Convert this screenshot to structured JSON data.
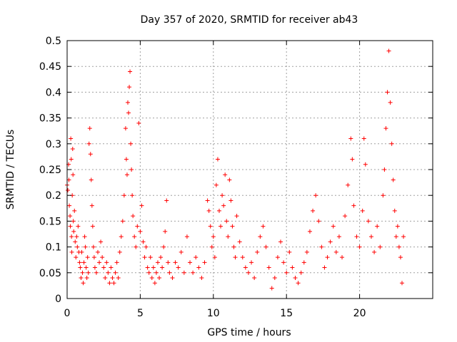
{
  "chart_data": {
    "type": "scatter",
    "title": "Day 357 of 2020, SRMTID for receiver ab43",
    "xlabel": "GPS time / hours",
    "ylabel": "SRMTID / TECUs",
    "xlim": [
      0,
      25
    ],
    "ylim": [
      0,
      0.5
    ],
    "x_ticks": [
      0,
      5,
      10,
      15,
      20
    ],
    "x_tick_labels": [
      "0",
      "5",
      "10",
      "15",
      "20"
    ],
    "y_ticks": [
      0,
      0.05,
      0.1,
      0.15,
      0.2,
      0.25,
      0.3,
      0.35,
      0.4,
      0.45,
      0.5
    ],
    "y_tick_labels": [
      "0",
      "0.05",
      "0.1",
      "0.15",
      "0.2",
      "0.25",
      "0.3",
      "0.35",
      "0.4",
      "0.45",
      "0.5"
    ],
    "grid": true,
    "marker": "+",
    "color": "#ff0000",
    "series": [
      {
        "name": "SRMTID",
        "points": [
          [
            0.0,
            0.22
          ],
          [
            0.05,
            0.21
          ],
          [
            0.1,
            0.26
          ],
          [
            0.12,
            0.23
          ],
          [
            0.15,
            0.18
          ],
          [
            0.2,
            0.16
          ],
          [
            0.22,
            0.14
          ],
          [
            0.25,
            0.31
          ],
          [
            0.28,
            0.27
          ],
          [
            0.3,
            0.12
          ],
          [
            0.32,
            0.09
          ],
          [
            0.35,
            0.2
          ],
          [
            0.38,
            0.29
          ],
          [
            0.4,
            0.24
          ],
          [
            0.42,
            0.15
          ],
          [
            0.45,
            0.13
          ],
          [
            0.5,
            0.17
          ],
          [
            0.55,
            0.11
          ],
          [
            0.6,
            0.08
          ],
          [
            0.65,
            0.12
          ],
          [
            0.7,
            0.1
          ],
          [
            0.75,
            0.14
          ],
          [
            0.8,
            0.09
          ],
          [
            0.85,
            0.07
          ],
          [
            0.9,
            0.06
          ],
          [
            0.95,
            0.04
          ],
          [
            1.0,
            0.09
          ],
          [
            1.05,
            0.05
          ],
          [
            1.1,
            0.03
          ],
          [
            1.15,
            0.07
          ],
          [
            1.2,
            0.12
          ],
          [
            1.25,
            0.1
          ],
          [
            1.3,
            0.06
          ],
          [
            1.35,
            0.04
          ],
          [
            1.4,
            0.08
          ],
          [
            1.45,
            0.05
          ],
          [
            1.5,
            0.3
          ],
          [
            1.55,
            0.33
          ],
          [
            1.6,
            0.28
          ],
          [
            1.65,
            0.23
          ],
          [
            1.7,
            0.18
          ],
          [
            1.75,
            0.14
          ],
          [
            1.8,
            0.1
          ],
          [
            1.85,
            0.08
          ],
          [
            1.9,
            0.06
          ],
          [
            2.0,
            0.05
          ],
          [
            2.1,
            0.09
          ],
          [
            2.2,
            0.07
          ],
          [
            2.3,
            0.11
          ],
          [
            2.4,
            0.08
          ],
          [
            2.5,
            0.06
          ],
          [
            2.6,
            0.04
          ],
          [
            2.7,
            0.07
          ],
          [
            2.8,
            0.05
          ],
          [
            2.9,
            0.03
          ],
          [
            3.0,
            0.06
          ],
          [
            3.1,
            0.04
          ],
          [
            3.2,
            0.03
          ],
          [
            3.3,
            0.05
          ],
          [
            3.4,
            0.07
          ],
          [
            3.5,
            0.04
          ],
          [
            3.6,
            0.09
          ],
          [
            3.7,
            0.12
          ],
          [
            3.8,
            0.15
          ],
          [
            3.9,
            0.2
          ],
          [
            4.0,
            0.33
          ],
          [
            4.05,
            0.27
          ],
          [
            4.1,
            0.24
          ],
          [
            4.15,
            0.38
          ],
          [
            4.2,
            0.36
          ],
          [
            4.25,
            0.41
          ],
          [
            4.3,
            0.44
          ],
          [
            4.35,
            0.3
          ],
          [
            4.4,
            0.25
          ],
          [
            4.45,
            0.2
          ],
          [
            4.5,
            0.16
          ],
          [
            4.6,
            0.12
          ],
          [
            4.7,
            0.1
          ],
          [
            4.8,
            0.14
          ],
          [
            4.9,
            0.34
          ],
          [
            5.0,
            0.13
          ],
          [
            5.1,
            0.18
          ],
          [
            5.2,
            0.11
          ],
          [
            5.3,
            0.08
          ],
          [
            5.4,
            0.1
          ],
          [
            5.5,
            0.06
          ],
          [
            5.6,
            0.05
          ],
          [
            5.7,
            0.08
          ],
          [
            5.8,
            0.04
          ],
          [
            5.9,
            0.06
          ],
          [
            6.0,
            0.03
          ],
          [
            6.1,
            0.05
          ],
          [
            6.2,
            0.07
          ],
          [
            6.3,
            0.04
          ],
          [
            6.4,
            0.08
          ],
          [
            6.5,
            0.06
          ],
          [
            6.6,
            0.1
          ],
          [
            6.7,
            0.13
          ],
          [
            6.8,
            0.19
          ],
          [
            6.9,
            0.07
          ],
          [
            7.0,
            0.05
          ],
          [
            7.2,
            0.04
          ],
          [
            7.4,
            0.07
          ],
          [
            7.6,
            0.06
          ],
          [
            7.8,
            0.09
          ],
          [
            8.0,
            0.05
          ],
          [
            8.2,
            0.12
          ],
          [
            8.4,
            0.07
          ],
          [
            8.6,
            0.05
          ],
          [
            8.8,
            0.08
          ],
          [
            9.0,
            0.06
          ],
          [
            9.2,
            0.04
          ],
          [
            9.4,
            0.07
          ],
          [
            9.6,
            0.19
          ],
          [
            9.7,
            0.17
          ],
          [
            9.8,
            0.14
          ],
          [
            9.9,
            0.1
          ],
          [
            10.0,
            0.12
          ],
          [
            10.1,
            0.08
          ],
          [
            10.2,
            0.22
          ],
          [
            10.3,
            0.27
          ],
          [
            10.4,
            0.17
          ],
          [
            10.5,
            0.14
          ],
          [
            10.6,
            0.2
          ],
          [
            10.7,
            0.18
          ],
          [
            10.8,
            0.24
          ],
          [
            10.9,
            0.15
          ],
          [
            11.0,
            0.12
          ],
          [
            11.1,
            0.23
          ],
          [
            11.2,
            0.19
          ],
          [
            11.3,
            0.14
          ],
          [
            11.4,
            0.1
          ],
          [
            11.5,
            0.08
          ],
          [
            11.6,
            0.16
          ],
          [
            11.8,
            0.11
          ],
          [
            12.0,
            0.08
          ],
          [
            12.2,
            0.06
          ],
          [
            12.4,
            0.05
          ],
          [
            12.6,
            0.07
          ],
          [
            12.8,
            0.04
          ],
          [
            13.0,
            0.09
          ],
          [
            13.2,
            0.12
          ],
          [
            13.4,
            0.14
          ],
          [
            13.6,
            0.1
          ],
          [
            13.8,
            0.06
          ],
          [
            14.0,
            0.02
          ],
          [
            14.2,
            0.04
          ],
          [
            14.4,
            0.08
          ],
          [
            14.6,
            0.11
          ],
          [
            14.8,
            0.07
          ],
          [
            15.0,
            0.05
          ],
          [
            15.2,
            0.09
          ],
          [
            15.4,
            0.06
          ],
          [
            15.6,
            0.04
          ],
          [
            15.8,
            0.03
          ],
          [
            16.0,
            0.05
          ],
          [
            16.2,
            0.07
          ],
          [
            16.4,
            0.09
          ],
          [
            16.6,
            0.13
          ],
          [
            16.8,
            0.17
          ],
          [
            17.0,
            0.2
          ],
          [
            17.2,
            0.15
          ],
          [
            17.4,
            0.1
          ],
          [
            17.6,
            0.06
          ],
          [
            17.8,
            0.08
          ],
          [
            18.0,
            0.11
          ],
          [
            18.2,
            0.14
          ],
          [
            18.4,
            0.09
          ],
          [
            18.6,
            0.12
          ],
          [
            18.8,
            0.08
          ],
          [
            19.0,
            0.16
          ],
          [
            19.2,
            0.22
          ],
          [
            19.4,
            0.31
          ],
          [
            19.5,
            0.27
          ],
          [
            19.6,
            0.18
          ],
          [
            19.8,
            0.12
          ],
          [
            20.0,
            0.1
          ],
          [
            20.2,
            0.17
          ],
          [
            20.3,
            0.31
          ],
          [
            20.4,
            0.26
          ],
          [
            20.6,
            0.15
          ],
          [
            20.8,
            0.12
          ],
          [
            21.0,
            0.09
          ],
          [
            21.2,
            0.14
          ],
          [
            21.4,
            0.1
          ],
          [
            21.6,
            0.2
          ],
          [
            21.7,
            0.25
          ],
          [
            21.8,
            0.33
          ],
          [
            21.9,
            0.4
          ],
          [
            22.0,
            0.48
          ],
          [
            22.1,
            0.38
          ],
          [
            22.2,
            0.3
          ],
          [
            22.3,
            0.23
          ],
          [
            22.4,
            0.17
          ],
          [
            22.5,
            0.12
          ],
          [
            22.6,
            0.14
          ],
          [
            22.7,
            0.1
          ],
          [
            22.8,
            0.08
          ],
          [
            22.9,
            0.03
          ],
          [
            23.0,
            0.12
          ]
        ]
      }
    ]
  }
}
